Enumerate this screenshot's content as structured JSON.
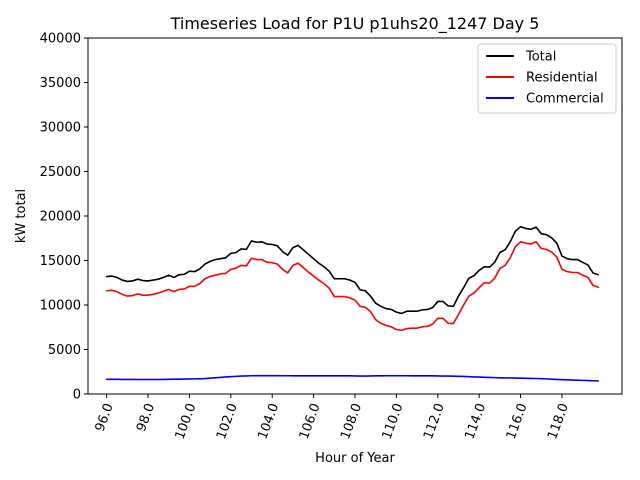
{
  "chart_data": {
    "type": "line",
    "title": "Timeseries Load for P1U p1uhs20_1247  Day 5",
    "xlabel": "Hour of Year",
    "ylabel": "kW total",
    "xlim": [
      95.1,
      120.9
    ],
    "ylim": [
      0,
      40000
    ],
    "xticks": [
      96,
      98,
      100,
      102,
      104,
      106,
      108,
      110,
      112,
      114,
      116,
      118
    ],
    "xtick_labels": [
      "96.0",
      "98.0",
      "100.0",
      "102.0",
      "104.0",
      "106.0",
      "108.0",
      "110.0",
      "112.0",
      "114.0",
      "116.0",
      "118.0"
    ],
    "yticks": [
      0,
      5000,
      10000,
      15000,
      20000,
      25000,
      30000,
      35000,
      40000
    ],
    "ytick_labels": [
      "0",
      "5000",
      "10000",
      "15000",
      "20000",
      "25000",
      "30000",
      "35000",
      "40000"
    ],
    "legend_position": "top-right",
    "x": [
      96.0,
      96.25,
      96.5,
      96.75,
      97.0,
      97.25,
      97.5,
      97.75,
      98.0,
      98.25,
      98.5,
      98.75,
      99.0,
      99.25,
      99.5,
      99.75,
      100.0,
      100.25,
      100.5,
      100.75,
      101.0,
      101.25,
      101.5,
      101.75,
      102.0,
      102.25,
      102.5,
      102.75,
      103.0,
      103.25,
      103.5,
      103.75,
      104.0,
      104.25,
      104.5,
      104.75,
      105.0,
      105.25,
      105.5,
      105.75,
      106.0,
      106.25,
      106.5,
      106.75,
      107.0,
      107.25,
      107.5,
      107.75,
      108.0,
      108.25,
      108.5,
      108.75,
      109.0,
      109.25,
      109.5,
      109.75,
      110.0,
      110.25,
      110.5,
      110.75,
      111.0,
      111.25,
      111.5,
      111.75,
      112.0,
      112.25,
      112.5,
      112.75,
      113.0,
      113.25,
      113.5,
      113.75,
      114.0,
      114.25,
      114.5,
      114.75,
      115.0,
      115.25,
      115.5,
      115.75,
      116.0,
      116.25,
      116.5,
      116.75,
      117.0,
      117.25,
      117.5,
      117.75,
      118.0,
      118.25,
      118.5,
      118.75,
      119.0,
      119.25,
      119.5,
      119.75
    ],
    "series": [
      {
        "name": "Total",
        "color": "#000000",
        "values": [
          13200,
          13250,
          13100,
          12800,
          12650,
          12700,
          12900,
          12750,
          12700,
          12800,
          12900,
          13100,
          13350,
          13100,
          13400,
          13450,
          13800,
          13750,
          14050,
          14600,
          14900,
          15100,
          15200,
          15300,
          15800,
          15900,
          16300,
          16250,
          17200,
          17050,
          17100,
          16850,
          16800,
          16650,
          16000,
          15600,
          16450,
          16700,
          16200,
          15700,
          15200,
          14700,
          14300,
          13800,
          12950,
          12950,
          12950,
          12800,
          12550,
          11700,
          11600,
          11000,
          10200,
          9850,
          9600,
          9500,
          9200,
          9050,
          9300,
          9300,
          9300,
          9450,
          9500,
          9700,
          10400,
          10400,
          9900,
          9850,
          11000,
          11950,
          13000,
          13300,
          13900,
          14300,
          14250,
          14800,
          15900,
          16200,
          17100,
          18300,
          18800,
          18600,
          18500,
          18750,
          18000,
          17900,
          17550,
          16950,
          15500,
          15200,
          15100,
          15100,
          14800,
          14500,
          13600,
          13400
        ]
      },
      {
        "name": "Residential",
        "color": "#ff0000",
        "values": [
          11600,
          11650,
          11500,
          11200,
          11000,
          11050,
          11250,
          11100,
          11100,
          11200,
          11350,
          11550,
          11750,
          11500,
          11750,
          11800,
          12100,
          12100,
          12400,
          12950,
          13200,
          13350,
          13500,
          13550,
          14000,
          14150,
          14450,
          14400,
          15250,
          15100,
          15100,
          14800,
          14750,
          14600,
          14000,
          13600,
          14450,
          14700,
          14200,
          13700,
          13250,
          12800,
          12400,
          11900,
          10950,
          10950,
          10950,
          10800,
          10550,
          9850,
          9750,
          9250,
          8350,
          7950,
          7700,
          7550,
          7250,
          7150,
          7350,
          7400,
          7400,
          7550,
          7600,
          7850,
          8500,
          8500,
          7950,
          7900,
          8950,
          10000,
          11000,
          11350,
          11950,
          12500,
          12450,
          13000,
          14100,
          14450,
          15300,
          16550,
          17100,
          16950,
          16850,
          17100,
          16350,
          16250,
          15950,
          15400,
          14000,
          13750,
          13650,
          13650,
          13350,
          13100,
          12200,
          12000
        ]
      },
      {
        "name": "Commercial",
        "color": "#0000ff",
        "values": [
          1650,
          1650,
          1650,
          1640,
          1640,
          1640,
          1630,
          1630,
          1630,
          1630,
          1630,
          1640,
          1650,
          1660,
          1670,
          1680,
          1690,
          1700,
          1710,
          1730,
          1780,
          1820,
          1870,
          1920,
          1950,
          1980,
          2010,
          2030,
          2050,
          2060,
          2060,
          2060,
          2060,
          2055,
          2050,
          2050,
          2045,
          2040,
          2040,
          2040,
          2040,
          2040,
          2040,
          2040,
          2040,
          2040,
          2040,
          2040,
          2030,
          2020,
          2020,
          2030,
          2040,
          2040,
          2050,
          2050,
          2050,
          2050,
          2050,
          2040,
          2040,
          2040,
          2040,
          2040,
          2030,
          2020,
          2010,
          2000,
          1990,
          1970,
          1950,
          1920,
          1900,
          1880,
          1860,
          1840,
          1820,
          1810,
          1800,
          1790,
          1780,
          1760,
          1750,
          1740,
          1720,
          1700,
          1670,
          1640,
          1610,
          1590,
          1570,
          1550,
          1530,
          1510,
          1490,
          1470
        ]
      }
    ]
  }
}
